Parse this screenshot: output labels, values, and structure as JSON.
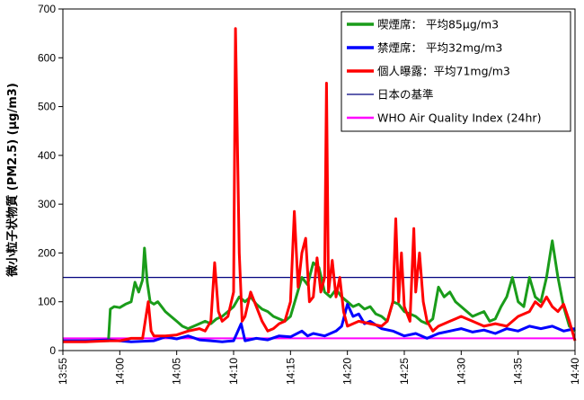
{
  "chart_data": {
    "type": "line",
    "title": "",
    "xlabel": "",
    "ylabel": "微小粒子状物質 (PM2.5) (μg/m3)",
    "ylim": [
      0,
      700
    ],
    "yticks": [
      0,
      100,
      200,
      300,
      400,
      500,
      600,
      700
    ],
    "xlim": [
      "13:55",
      "14:40"
    ],
    "xticks": [
      "13:55",
      "14:00",
      "14:05",
      "14:10",
      "14:15",
      "14:20",
      "14:25",
      "14:30",
      "14:35",
      "14:40"
    ],
    "grid": false,
    "legend_position": "top-right",
    "series": [
      {
        "name": "喫煙席：  平均85μg/m3",
        "color": "#1a9c1a",
        "width": 3,
        "points": [
          [
            "13:55",
            20
          ],
          [
            "13:56",
            20
          ],
          [
            "13:57",
            20
          ],
          [
            "13:58",
            20
          ],
          [
            "13:59",
            20
          ],
          [
            "13:59:10",
            85
          ],
          [
            "13:59:30",
            90
          ],
          [
            "14:00",
            88
          ],
          [
            "14:00:30",
            95
          ],
          [
            "14:01",
            100
          ],
          [
            "14:01:20",
            140
          ],
          [
            "14:01:40",
            120
          ],
          [
            "14:02",
            145
          ],
          [
            "14:02:10",
            210
          ],
          [
            "14:02:25",
            140
          ],
          [
            "14:02:40",
            100
          ],
          [
            "14:03",
            95
          ],
          [
            "14:03:20",
            100
          ],
          [
            "14:03:40",
            90
          ],
          [
            "14:04",
            80
          ],
          [
            "14:04:30",
            70
          ],
          [
            "14:05",
            60
          ],
          [
            "14:05:30",
            50
          ],
          [
            "14:06",
            45
          ],
          [
            "14:06:30",
            50
          ],
          [
            "14:07",
            55
          ],
          [
            "14:07:30",
            60
          ],
          [
            "14:08",
            55
          ],
          [
            "14:08:30",
            65
          ],
          [
            "14:09",
            70
          ],
          [
            "14:09:30",
            80
          ],
          [
            "14:10",
            90
          ],
          [
            "14:10:30",
            110
          ],
          [
            "14:11",
            100
          ],
          [
            "14:11:30",
            110
          ],
          [
            "14:12",
            95
          ],
          [
            "14:12:30",
            85
          ],
          [
            "14:13",
            80
          ],
          [
            "14:13:30",
            70
          ],
          [
            "14:14",
            65
          ],
          [
            "14:14:30",
            60
          ],
          [
            "14:15",
            70
          ],
          [
            "14:15:30",
            110
          ],
          [
            "14:16",
            150
          ],
          [
            "14:16:30",
            135
          ],
          [
            "14:17",
            180
          ],
          [
            "14:17:30",
            170
          ],
          [
            "14:18",
            120
          ],
          [
            "14:18:30",
            110
          ],
          [
            "14:19",
            125
          ],
          [
            "14:19:30",
            110
          ],
          [
            "14:20",
            100
          ],
          [
            "14:20:30",
            90
          ],
          [
            "14:21",
            95
          ],
          [
            "14:21:30",
            85
          ],
          [
            "14:22",
            90
          ],
          [
            "14:22:30",
            75
          ],
          [
            "14:23",
            70
          ],
          [
            "14:23:30",
            60
          ],
          [
            "14:24",
            100
          ],
          [
            "14:24:30",
            95
          ],
          [
            "14:25",
            80
          ],
          [
            "14:25:30",
            75
          ],
          [
            "14:26",
            70
          ],
          [
            "14:26:30",
            60
          ],
          [
            "14:27",
            55
          ],
          [
            "14:27:30",
            65
          ],
          [
            "14:28",
            130
          ],
          [
            "14:28:30",
            110
          ],
          [
            "14:29",
            120
          ],
          [
            "14:29:30",
            100
          ],
          [
            "14:30",
            90
          ],
          [
            "14:30:30",
            80
          ],
          [
            "14:31",
            70
          ],
          [
            "14:31:30",
            75
          ],
          [
            "14:32",
            80
          ],
          [
            "14:32:30",
            60
          ],
          [
            "14:33",
            65
          ],
          [
            "14:33:30",
            90
          ],
          [
            "14:34",
            110
          ],
          [
            "14:34:30",
            150
          ],
          [
            "14:35",
            100
          ],
          [
            "14:35:30",
            90
          ],
          [
            "14:36",
            150
          ],
          [
            "14:36:30",
            110
          ],
          [
            "14:37",
            100
          ],
          [
            "14:37:30",
            150
          ],
          [
            "14:38",
            225
          ],
          [
            "14:38:30",
            150
          ],
          [
            "14:39",
            90
          ],
          [
            "14:39:30",
            50
          ],
          [
            "14:40",
            40
          ]
        ]
      },
      {
        "name": "禁煙席：  平均32mg/m3",
        "color": "#0000ff",
        "width": 3,
        "points": [
          [
            "13:55",
            20
          ],
          [
            "13:57",
            20
          ],
          [
            "13:59",
            22
          ],
          [
            "14:01",
            18
          ],
          [
            "14:03",
            20
          ],
          [
            "14:04",
            28
          ],
          [
            "14:05",
            24
          ],
          [
            "14:06",
            30
          ],
          [
            "14:07",
            22
          ],
          [
            "14:08",
            20
          ],
          [
            "14:09",
            18
          ],
          [
            "14:10",
            20
          ],
          [
            "14:10:40",
            55
          ],
          [
            "14:11",
            20
          ],
          [
            "14:12",
            25
          ],
          [
            "14:13",
            22
          ],
          [
            "14:14",
            30
          ],
          [
            "14:15",
            28
          ],
          [
            "14:16",
            40
          ],
          [
            "14:16:30",
            30
          ],
          [
            "14:17",
            35
          ],
          [
            "14:18",
            30
          ],
          [
            "14:19",
            40
          ],
          [
            "14:19:30",
            50
          ],
          [
            "14:20",
            95
          ],
          [
            "14:20:30",
            70
          ],
          [
            "14:21",
            75
          ],
          [
            "14:21:30",
            55
          ],
          [
            "14:22",
            60
          ],
          [
            "14:23",
            45
          ],
          [
            "14:24",
            40
          ],
          [
            "14:25",
            30
          ],
          [
            "14:26",
            35
          ],
          [
            "14:27",
            25
          ],
          [
            "14:28",
            35
          ],
          [
            "14:29",
            40
          ],
          [
            "14:30",
            45
          ],
          [
            "14:31",
            38
          ],
          [
            "14:32",
            42
          ],
          [
            "14:33",
            35
          ],
          [
            "14:34",
            45
          ],
          [
            "14:35",
            40
          ],
          [
            "14:36",
            50
          ],
          [
            "14:37",
            45
          ],
          [
            "14:38",
            50
          ],
          [
            "14:39",
            40
          ],
          [
            "14:40",
            45
          ]
        ]
      },
      {
        "name": "個人曝露：平均71mg/m3",
        "color": "#ff0000",
        "width": 3,
        "points": [
          [
            "13:55",
            18
          ],
          [
            "13:57",
            18
          ],
          [
            "13:59",
            20
          ],
          [
            "14:00",
            20
          ],
          [
            "14:01",
            25
          ],
          [
            "14:02",
            25
          ],
          [
            "14:02:30",
            100
          ],
          [
            "14:02:45",
            40
          ],
          [
            "14:03",
            30
          ],
          [
            "14:04",
            30
          ],
          [
            "14:05",
            32
          ],
          [
            "14:06",
            40
          ],
          [
            "14:07",
            45
          ],
          [
            "14:07:30",
            40
          ],
          [
            "14:08",
            60
          ],
          [
            "14:08:20",
            180
          ],
          [
            "14:08:40",
            80
          ],
          [
            "14:09",
            60
          ],
          [
            "14:09:30",
            70
          ],
          [
            "14:10",
            120
          ],
          [
            "14:10:10",
            660
          ],
          [
            "14:10:30",
            200
          ],
          [
            "14:10:45",
            60
          ],
          [
            "14:11",
            70
          ],
          [
            "14:11:30",
            120
          ],
          [
            "14:12",
            90
          ],
          [
            "14:12:30",
            60
          ],
          [
            "14:13",
            40
          ],
          [
            "14:13:30",
            45
          ],
          [
            "14:14",
            55
          ],
          [
            "14:14:30",
            60
          ],
          [
            "14:15",
            100
          ],
          [
            "14:15:20",
            285
          ],
          [
            "14:15:40",
            130
          ],
          [
            "14:16",
            200
          ],
          [
            "14:16:20",
            230
          ],
          [
            "14:16:40",
            100
          ],
          [
            "14:17",
            110
          ],
          [
            "14:17:20",
            190
          ],
          [
            "14:17:40",
            120
          ],
          [
            "14:18",
            150
          ],
          [
            "14:18:10",
            548
          ],
          [
            "14:18:20",
            120
          ],
          [
            "14:18:40",
            185
          ],
          [
            "14:19",
            110
          ],
          [
            "14:19:20",
            150
          ],
          [
            "14:19:40",
            80
          ],
          [
            "14:20",
            50
          ],
          [
            "14:21",
            60
          ],
          [
            "14:22",
            55
          ],
          [
            "14:23",
            50
          ],
          [
            "14:23:30",
            60
          ],
          [
            "14:24",
            100
          ],
          [
            "14:24:15",
            270
          ],
          [
            "14:24:30",
            100
          ],
          [
            "14:24:45",
            200
          ],
          [
            "14:25",
            90
          ],
          [
            "14:25:30",
            60
          ],
          [
            "14:25:50",
            250
          ],
          [
            "14:26",
            120
          ],
          [
            "14:26:20",
            200
          ],
          [
            "14:26:40",
            100
          ],
          [
            "14:27",
            60
          ],
          [
            "14:27:30",
            40
          ],
          [
            "14:28",
            50
          ],
          [
            "14:29",
            60
          ],
          [
            "14:30",
            70
          ],
          [
            "14:31",
            60
          ],
          [
            "14:32",
            50
          ],
          [
            "14:33",
            55
          ],
          [
            "14:34",
            50
          ],
          [
            "14:35",
            70
          ],
          [
            "14:36",
            80
          ],
          [
            "14:36:30",
            100
          ],
          [
            "14:37",
            90
          ],
          [
            "14:37:30",
            110
          ],
          [
            "14:38",
            90
          ],
          [
            "14:38:30",
            80
          ],
          [
            "14:39",
            95
          ],
          [
            "14:39:30",
            60
          ],
          [
            "14:40",
            20
          ]
        ]
      },
      {
        "name": "日本の基準",
        "color": "#00007f",
        "width": 1.2,
        "points": [
          [
            "13:55",
            150
          ],
          [
            "14:40",
            150
          ]
        ]
      },
      {
        "name": "WHO Air Quality Index (24hr)",
        "color": "#ff00ff",
        "width": 2,
        "points": [
          [
            "13:55",
            25
          ],
          [
            "14:40",
            25
          ]
        ]
      }
    ]
  }
}
